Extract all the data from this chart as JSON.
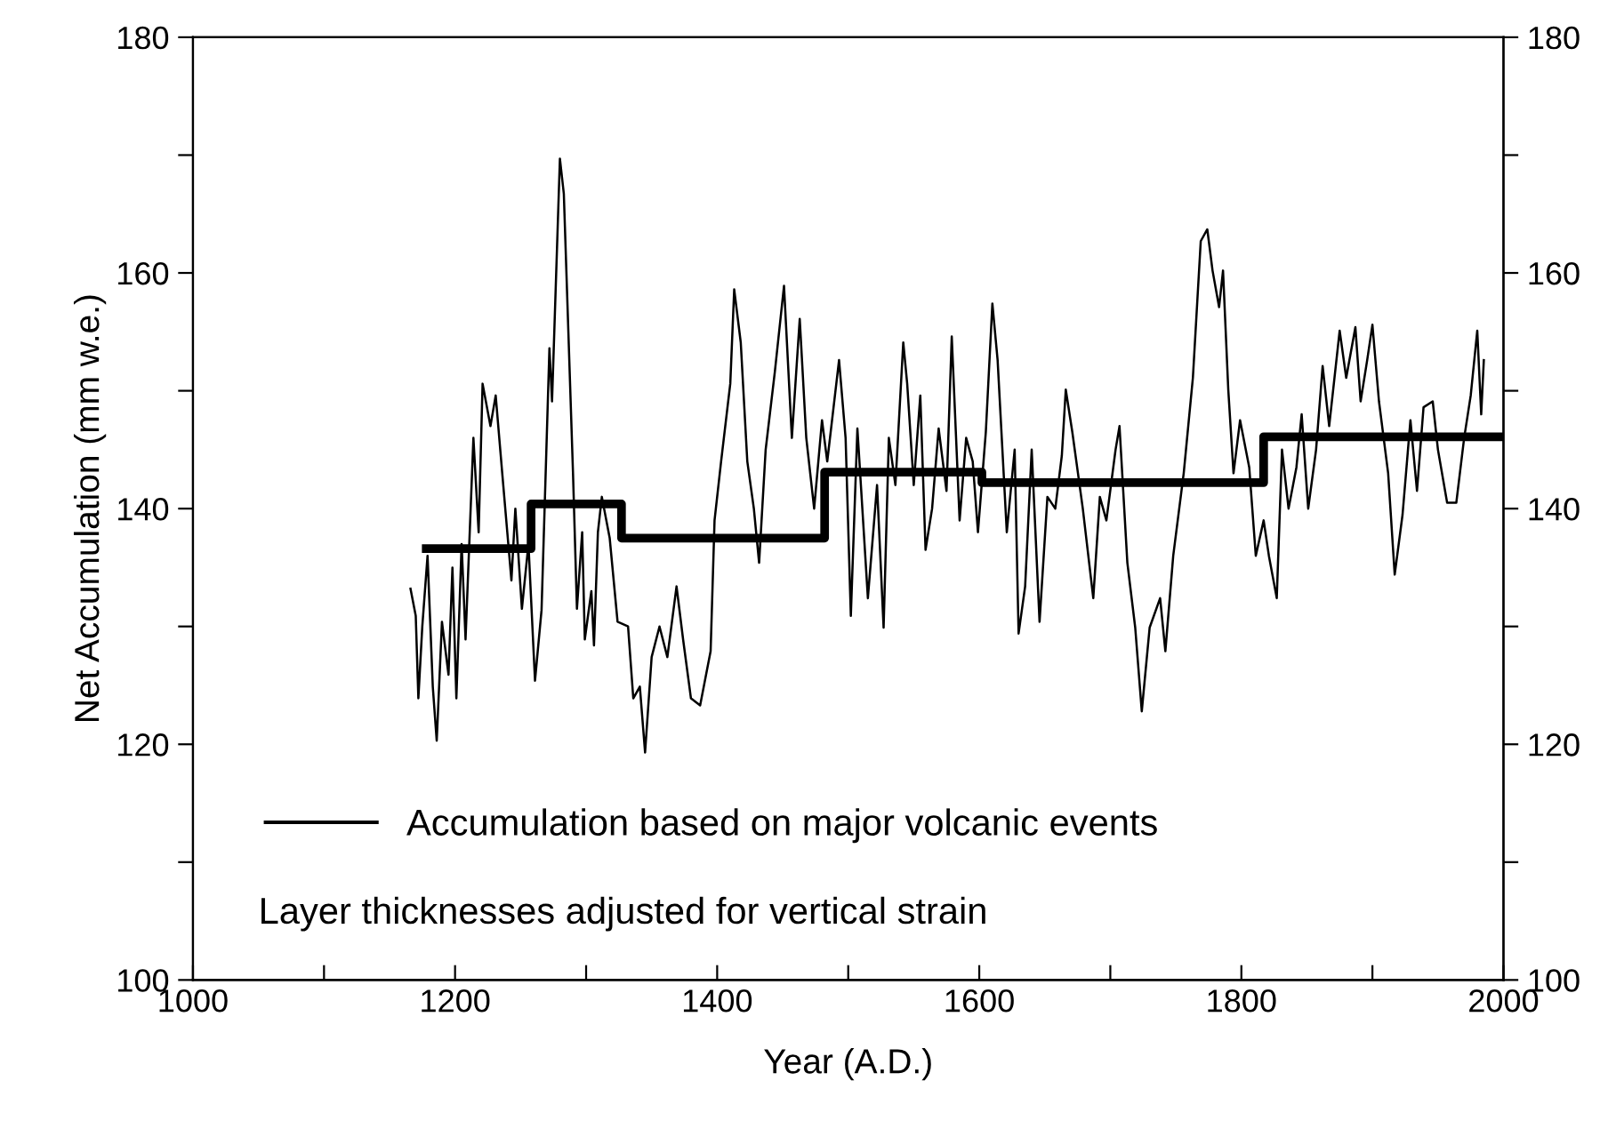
{
  "chart_data": {
    "type": "line",
    "xlabel": "Year (A.D.)",
    "ylabel": "Net Accumulation (mm w.e.)",
    "xlim": [
      1000,
      2000
    ],
    "xticks": [
      1000,
      {
        "value": 1100,
        "label": null
      },
      1200,
      {
        "value": 1300,
        "label": null
      },
      1400,
      {
        "value": 1500,
        "label": null
      },
      1600,
      {
        "value": 1700,
        "label": null
      },
      1800,
      {
        "value": 1900,
        "label": null
      },
      2000
    ],
    "ylim": [
      100,
      180
    ],
    "yticks": [
      100,
      {
        "value": 110,
        "label": null
      },
      120,
      {
        "value": 130,
        "label": null
      },
      140,
      {
        "value": 150,
        "label": null
      },
      160,
      {
        "value": 170,
        "label": null
      },
      180
    ],
    "y2lim": [
      100,
      180
    ],
    "y2ticks": [
      100,
      {
        "value": 110,
        "label": null
      },
      120,
      {
        "value": 130,
        "label": null
      },
      140,
      {
        "value": 150,
        "label": null
      },
      160,
      {
        "value": 170,
        "label": null
      },
      180
    ],
    "grid": false,
    "legend": "bottom left",
    "annotations": [
      "Layer thicknesses adjusted for vertical strain"
    ],
    "series": [
      {
        "color": "#000000",
        "x": [
          1166,
          1170,
          1172,
          1175,
          1179,
          1183,
          1186,
          1190,
          1195,
          1198,
          1201,
          1205,
          1208,
          1214,
          1218,
          1221,
          1227,
          1231,
          1236,
          1243,
          1246,
          1251,
          1256,
          1261,
          1266,
          1272,
          1274,
          1280,
          1283,
          1290,
          1293,
          1297,
          1299,
          1304,
          1306,
          1309,
          1312,
          1318,
          1324,
          1332,
          1336,
          1341,
          1345,
          1350,
          1356,
          1362,
          1369,
          1374,
          1380,
          1387,
          1395,
          1398,
          1403,
          1410,
          1413,
          1418,
          1423,
          1428,
          1432,
          1437,
          1444,
          1451,
          1457,
          1463,
          1468,
          1474,
          1480,
          1484,
          1493,
          1498,
          1502,
          1507,
          1515,
          1522,
          1527,
          1531,
          1536,
          1542,
          1545,
          1550,
          1555,
          1559,
          1564,
          1569,
          1575,
          1579,
          1585,
          1590,
          1595,
          1599,
          1605,
          1610,
          1614,
          1621,
          1627,
          1630,
          1635,
          1640,
          1646,
          1652,
          1658,
          1663,
          1666,
          1671,
          1679,
          1687,
          1692,
          1697,
          1704,
          1707,
          1713,
          1719,
          1724,
          1730,
          1738,
          1742,
          1748,
          1756,
          1763,
          1769,
          1774,
          1778,
          1783,
          1786,
          1790,
          1794,
          1799,
          1806,
          1811,
          1817,
          1821,
          1827,
          1831,
          1836,
          1842,
          1846,
          1851,
          1857,
          1862,
          1867,
          1875,
          1880,
          1887,
          1891,
          1896,
          1900,
          1905,
          1912,
          1917,
          1923,
          1929,
          1934,
          1939,
          1946,
          1950,
          1957,
          1964,
          1970,
          1975,
          1980,
          1983,
          1985
        ],
        "values": [
          133.2,
          130.9,
          123.9,
          130,
          136,
          124.9,
          120.3,
          130.4,
          125.9,
          135,
          123.9,
          137,
          128.9,
          146,
          138,
          150.6,
          147,
          149.6,
          143,
          133.9,
          140,
          131.5,
          137,
          125.4,
          131.4,
          153.6,
          149.1,
          169.7,
          166.7,
          143,
          131.5,
          138,
          128.9,
          133,
          128.4,
          138,
          141,
          137.5,
          130.4,
          130,
          123.9,
          124.9,
          119.3,
          127.4,
          130,
          127.4,
          133.4,
          128.9,
          123.9,
          123.3,
          127.9,
          139,
          144,
          150.6,
          158.6,
          154.1,
          144,
          140,
          135.4,
          145,
          151.6,
          158.9,
          146,
          156.1,
          146,
          140,
          147.5,
          144,
          152.6,
          146,
          130.9,
          146.8,
          132.4,
          142,
          129.9,
          146,
          142,
          154.1,
          150.6,
          142,
          149.6,
          136.5,
          140,
          146.8,
          141.5,
          154.6,
          139,
          146,
          144,
          138,
          146.5,
          157.4,
          152.6,
          138,
          145,
          129.4,
          133.4,
          145,
          130.4,
          141,
          140,
          144.5,
          150.1,
          146.5,
          140,
          132.4,
          141,
          139,
          145,
          147,
          135.4,
          129.9,
          122.8,
          129.9,
          132.4,
          127.9,
          136,
          143,
          151.1,
          162.7,
          163.7,
          160.2,
          157.1,
          160.2,
          150.1,
          143,
          147.5,
          143.5,
          136,
          139,
          136,
          132.4,
          145,
          140,
          143.5,
          148,
          140,
          145,
          152.1,
          147,
          155.1,
          151.1,
          155.4,
          149.1,
          152.6,
          155.6,
          149.1,
          143,
          134.4,
          139.5,
          147.5,
          141.5,
          148.6,
          149.1,
          145,
          140.5,
          140.5,
          146,
          149.6,
          155.1,
          148,
          152.6
        ]
      },
      {
        "type": "step",
        "name": "Accumulation based on major volcanic events",
        "color": "#000000",
        "x": [
          1178,
          1258,
          1327,
          1482,
          1602,
          1817,
          1997
        ],
        "values": [
          136.6,
          140.4,
          137.5,
          143.1,
          142.2,
          146.1,
          146.1
        ]
      }
    ]
  }
}
